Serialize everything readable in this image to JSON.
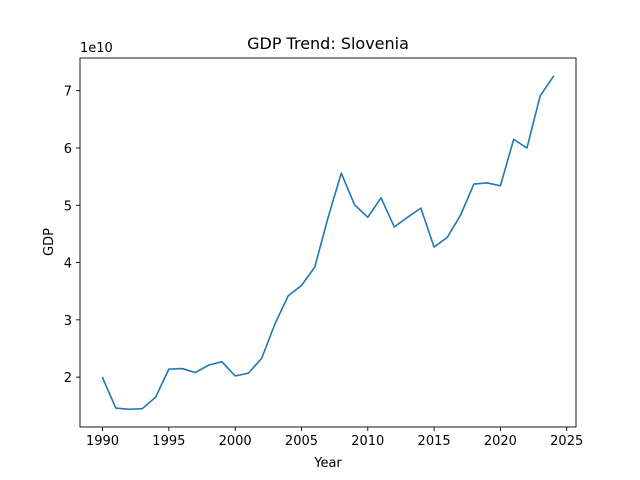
{
  "chart_data": {
    "type": "line",
    "title": "GDP Trend: Slovenia",
    "xlabel": "Year",
    "ylabel": "GDP",
    "y_offset_text": "1e10",
    "xlim": [
      1988.3,
      2025.7
    ],
    "ylim": [
      1.13,
      7.57
    ],
    "x_ticks": [
      1990,
      1995,
      2000,
      2005,
      2010,
      2015,
      2020,
      2025
    ],
    "x_tick_labels": [
      "1990",
      "1995",
      "2000",
      "2005",
      "2010",
      "2015",
      "2020",
      "2025"
    ],
    "y_ticks": [
      2,
      3,
      4,
      5,
      6,
      7
    ],
    "y_tick_labels": [
      "2",
      "3",
      "4",
      "5",
      "6",
      "7"
    ],
    "grid": false,
    "series": [
      {
        "color": "#1f77b4",
        "x": [
          1990,
          1991,
          1992,
          1993,
          1994,
          1995,
          1996,
          1997,
          1998,
          1999,
          2000,
          2001,
          2002,
          2003,
          2004,
          2005,
          2006,
          2007,
          2008,
          2009,
          2010,
          2011,
          2012,
          2013,
          2014,
          2015,
          2016,
          2017,
          2018,
          2019,
          2020,
          2021,
          2022,
          2023,
          2024
        ],
        "y": [
          1.99,
          1.46,
          1.44,
          1.45,
          1.65,
          2.14,
          2.15,
          2.08,
          2.21,
          2.27,
          2.02,
          2.07,
          2.33,
          2.93,
          3.42,
          3.6,
          3.92,
          4.78,
          5.56,
          5.01,
          4.79,
          5.13,
          4.62,
          4.79,
          4.95,
          4.27,
          4.44,
          4.83,
          5.37,
          5.39,
          5.34,
          6.15,
          6.0,
          6.91,
          7.25
        ]
      }
    ]
  }
}
